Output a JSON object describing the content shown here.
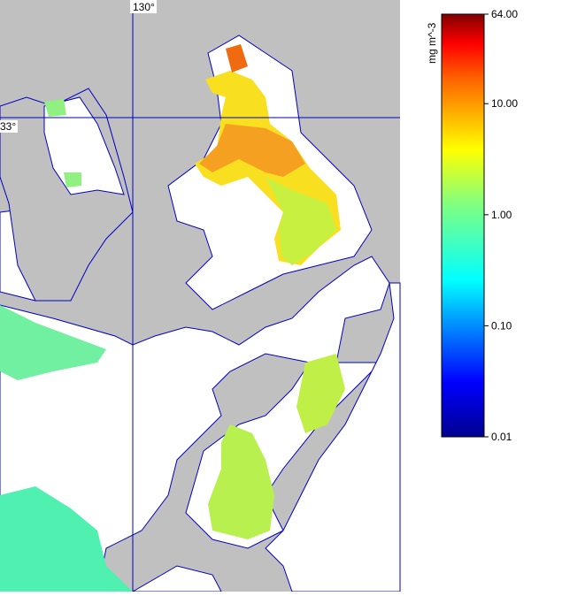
{
  "map": {
    "grid_labels": {
      "longitude": "130°",
      "latitude": "33°"
    },
    "colorbar": {
      "label": "mg m^-3",
      "scale": "log",
      "lim": [
        0.01,
        64
      ],
      "ticks": [
        {
          "value": 64,
          "label": "64.00"
        },
        {
          "value": 10,
          "label": "10.00"
        },
        {
          "value": 1,
          "label": "1.00"
        },
        {
          "value": 0.1,
          "label": "0.10"
        },
        {
          "value": 0.01,
          "label": "0.01"
        }
      ]
    }
  }
}
